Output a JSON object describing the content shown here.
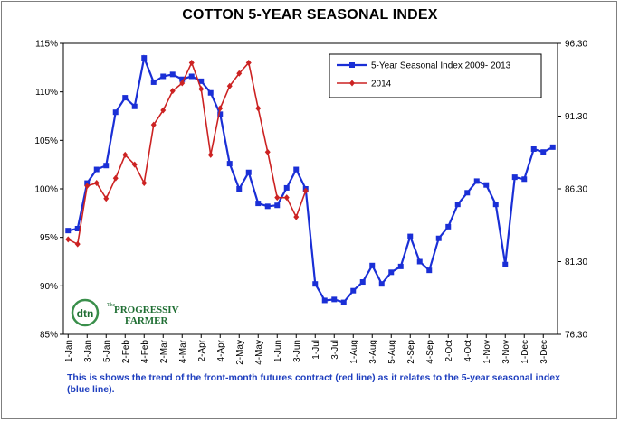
{
  "title": "COTTON 5-YEAR SEASONAL INDEX",
  "caption": "This is shows the trend of the front-month futures contract (red line) as it relates to the 5-year seasonal  index (blue line).",
  "logo": {
    "mark": "dtn",
    "line1": "The",
    "line2": "PROGRESSIVE",
    "line3": "FARMER",
    "colors": {
      "ring": "#3a8f4b",
      "text": "#1f6e33"
    }
  },
  "chart_data": {
    "type": "line",
    "title": "COTTON 5-YEAR SEASONAL INDEX",
    "x_tick_labels": [
      "1-Jan",
      "3-Jan",
      "5-Jan",
      "2-Feb",
      "4-Feb",
      "2-Mar",
      "4-Mar",
      "2-Apr",
      "4-Apr",
      "2-May",
      "4-May",
      "1-Jun",
      "3-Jun",
      "1-Jul",
      "3-Jul",
      "1-Aug",
      "3-Aug",
      "5-Aug",
      "2-Sep",
      "4-Sep",
      "2-Oct",
      "4-Oct",
      "1-Nov",
      "3-Nov",
      "1-Dec",
      "3-Dec"
    ],
    "left_axis": {
      "ticks": [
        "85%",
        "90%",
        "95%",
        "100%",
        "105%",
        "110%",
        "115%"
      ],
      "min": 85,
      "max": 115
    },
    "right_axis": {
      "ticks": [
        "76.30",
        "81.30",
        "86.30",
        "91.30",
        "96.30"
      ],
      "min": 76.3,
      "max": 96.3
    },
    "n_weeks": 52,
    "series": [
      {
        "name": "5-Year Seasonal Index 2009- 2013",
        "color": "#1a2fd6",
        "marker": "square",
        "axis": "left",
        "values": [
          95.7,
          95.9,
          100.6,
          102.0,
          102.4,
          107.9,
          109.4,
          108.5,
          113.5,
          111.0,
          111.6,
          111.8,
          111.3,
          111.6,
          111.1,
          109.9,
          107.7,
          102.6,
          100.0,
          101.7,
          98.5,
          98.2,
          98.3,
          100.1,
          102.0,
          100.0,
          90.2,
          88.5,
          88.6,
          88.3,
          89.5,
          90.4,
          92.1,
          90.2,
          91.4,
          92.0,
          95.1,
          92.5,
          91.6,
          94.9,
          96.1,
          98.4,
          99.6,
          100.8,
          100.4,
          98.4,
          92.2,
          101.2,
          101.0,
          104.1,
          103.8,
          104.3
        ]
      },
      {
        "name": "2014",
        "color": "#cc2222",
        "marker": "diamond",
        "axis": "left",
        "values": [
          94.8,
          94.3,
          100.3,
          100.6,
          99.0,
          101.1,
          103.5,
          102.5,
          100.6,
          106.6,
          108.1,
          110.1,
          110.9,
          113.0,
          110.3,
          103.5,
          108.3,
          110.6,
          111.9,
          113.0,
          108.3,
          103.8,
          99.1,
          99.1,
          97.1,
          99.8
        ]
      }
    ],
    "legend": {
      "position": "top-right"
    },
    "grid": false
  }
}
